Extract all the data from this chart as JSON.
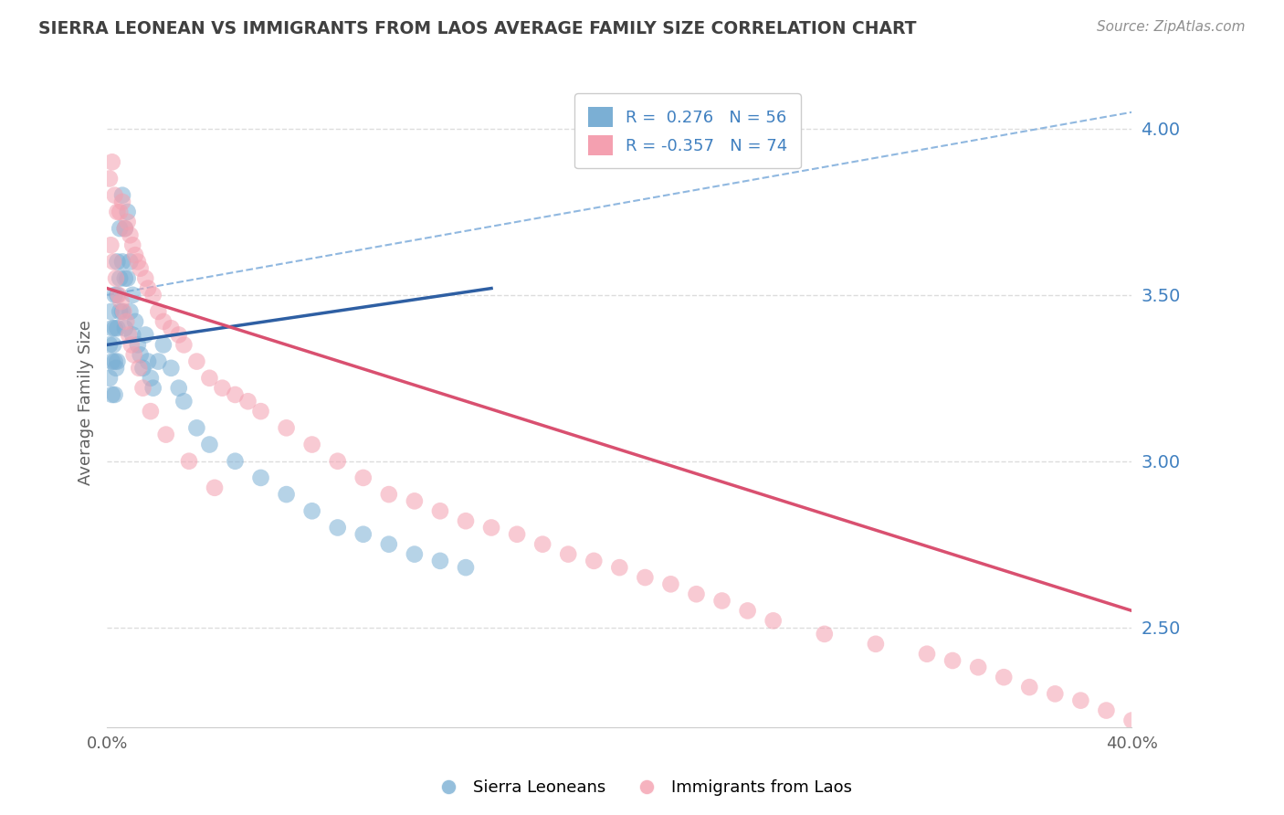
{
  "title": "SIERRA LEONEAN VS IMMIGRANTS FROM LAOS AVERAGE FAMILY SIZE CORRELATION CHART",
  "source": "Source: ZipAtlas.com",
  "ylabel": "Average Family Size",
  "y_ticks": [
    2.5,
    3.0,
    3.5,
    4.0
  ],
  "x_min": 0.0,
  "x_max": 40.0,
  "y_min": 2.2,
  "y_max": 4.15,
  "legend_r1": "R =  0.276",
  "legend_n1": "N = 56",
  "legend_r2": "R = -0.357",
  "legend_n2": "N = 74",
  "blue_color": "#7BAFD4",
  "pink_color": "#F4A0B0",
  "trendline_blue_color": "#2E5FA3",
  "trendline_pink_color": "#D95070",
  "dashed_line_color": "#90B8E0",
  "background_color": "#FFFFFF",
  "grid_color": "#DDDDDD",
  "title_color": "#404040",
  "right_axis_color": "#4080C0",
  "source_color": "#909090",
  "blue_scatter_x": [
    0.1,
    0.1,
    0.2,
    0.2,
    0.2,
    0.3,
    0.3,
    0.3,
    0.3,
    0.4,
    0.4,
    0.4,
    0.4,
    0.5,
    0.5,
    0.5,
    0.6,
    0.6,
    0.6,
    0.7,
    0.7,
    0.7,
    0.8,
    0.8,
    0.9,
    0.9,
    1.0,
    1.0,
    1.1,
    1.2,
    1.3,
    1.4,
    1.5,
    1.6,
    1.7,
    1.8,
    2.0,
    2.2,
    2.5,
    2.8,
    3.0,
    3.5,
    4.0,
    5.0,
    6.0,
    7.0,
    8.0,
    9.0,
    10.0,
    11.0,
    12.0,
    13.0,
    14.0,
    0.15,
    0.25,
    0.35
  ],
  "blue_scatter_y": [
    3.35,
    3.25,
    3.4,
    3.3,
    3.2,
    3.5,
    3.4,
    3.3,
    3.2,
    3.6,
    3.5,
    3.4,
    3.3,
    3.7,
    3.55,
    3.45,
    3.8,
    3.6,
    3.45,
    3.7,
    3.55,
    3.4,
    3.75,
    3.55,
    3.6,
    3.45,
    3.5,
    3.38,
    3.42,
    3.35,
    3.32,
    3.28,
    3.38,
    3.3,
    3.25,
    3.22,
    3.3,
    3.35,
    3.28,
    3.22,
    3.18,
    3.1,
    3.05,
    3.0,
    2.95,
    2.9,
    2.85,
    2.8,
    2.78,
    2.75,
    2.72,
    2.7,
    2.68,
    3.45,
    3.35,
    3.28
  ],
  "pink_scatter_x": [
    0.1,
    0.2,
    0.3,
    0.4,
    0.5,
    0.6,
    0.7,
    0.8,
    0.9,
    1.0,
    1.1,
    1.2,
    1.3,
    1.5,
    1.6,
    1.8,
    2.0,
    2.2,
    2.5,
    2.8,
    3.0,
    3.5,
    4.0,
    4.5,
    5.0,
    5.5,
    6.0,
    7.0,
    8.0,
    9.0,
    10.0,
    11.0,
    12.0,
    13.0,
    14.0,
    15.0,
    16.0,
    17.0,
    18.0,
    19.0,
    20.0,
    21.0,
    22.0,
    23.0,
    24.0,
    25.0,
    26.0,
    28.0,
    30.0,
    32.0,
    33.0,
    34.0,
    35.0,
    36.0,
    37.0,
    38.0,
    39.0,
    40.0,
    0.15,
    0.25,
    0.35,
    0.45,
    0.55,
    0.65,
    0.75,
    0.85,
    0.95,
    1.05,
    1.25,
    1.4,
    1.7,
    2.3,
    3.2,
    4.2
  ],
  "pink_scatter_y": [
    3.85,
    3.9,
    3.8,
    3.75,
    3.75,
    3.78,
    3.7,
    3.72,
    3.68,
    3.65,
    3.62,
    3.6,
    3.58,
    3.55,
    3.52,
    3.5,
    3.45,
    3.42,
    3.4,
    3.38,
    3.35,
    3.3,
    3.25,
    3.22,
    3.2,
    3.18,
    3.15,
    3.1,
    3.05,
    3.0,
    2.95,
    2.9,
    2.88,
    2.85,
    2.82,
    2.8,
    2.78,
    2.75,
    2.72,
    2.7,
    2.68,
    2.65,
    2.63,
    2.6,
    2.58,
    2.55,
    2.52,
    2.48,
    2.45,
    2.42,
    2.4,
    2.38,
    2.35,
    2.32,
    2.3,
    2.28,
    2.25,
    2.22,
    3.65,
    3.6,
    3.55,
    3.5,
    3.48,
    3.45,
    3.42,
    3.38,
    3.35,
    3.32,
    3.28,
    3.22,
    3.15,
    3.08,
    3.0,
    2.92
  ],
  "blue_trendline_x0": 0.0,
  "blue_trendline_y0": 3.35,
  "blue_trendline_x1": 15.0,
  "blue_trendline_y1": 3.52,
  "pink_trendline_x0": 0.0,
  "pink_trendline_y0": 3.52,
  "pink_trendline_x1": 40.0,
  "pink_trendline_y1": 2.55,
  "dashed_x0": 0.0,
  "dashed_y0": 3.5,
  "dashed_x1": 40.0,
  "dashed_y1": 4.05,
  "figwidth": 14.06,
  "figheight": 8.92,
  "dpi": 100
}
